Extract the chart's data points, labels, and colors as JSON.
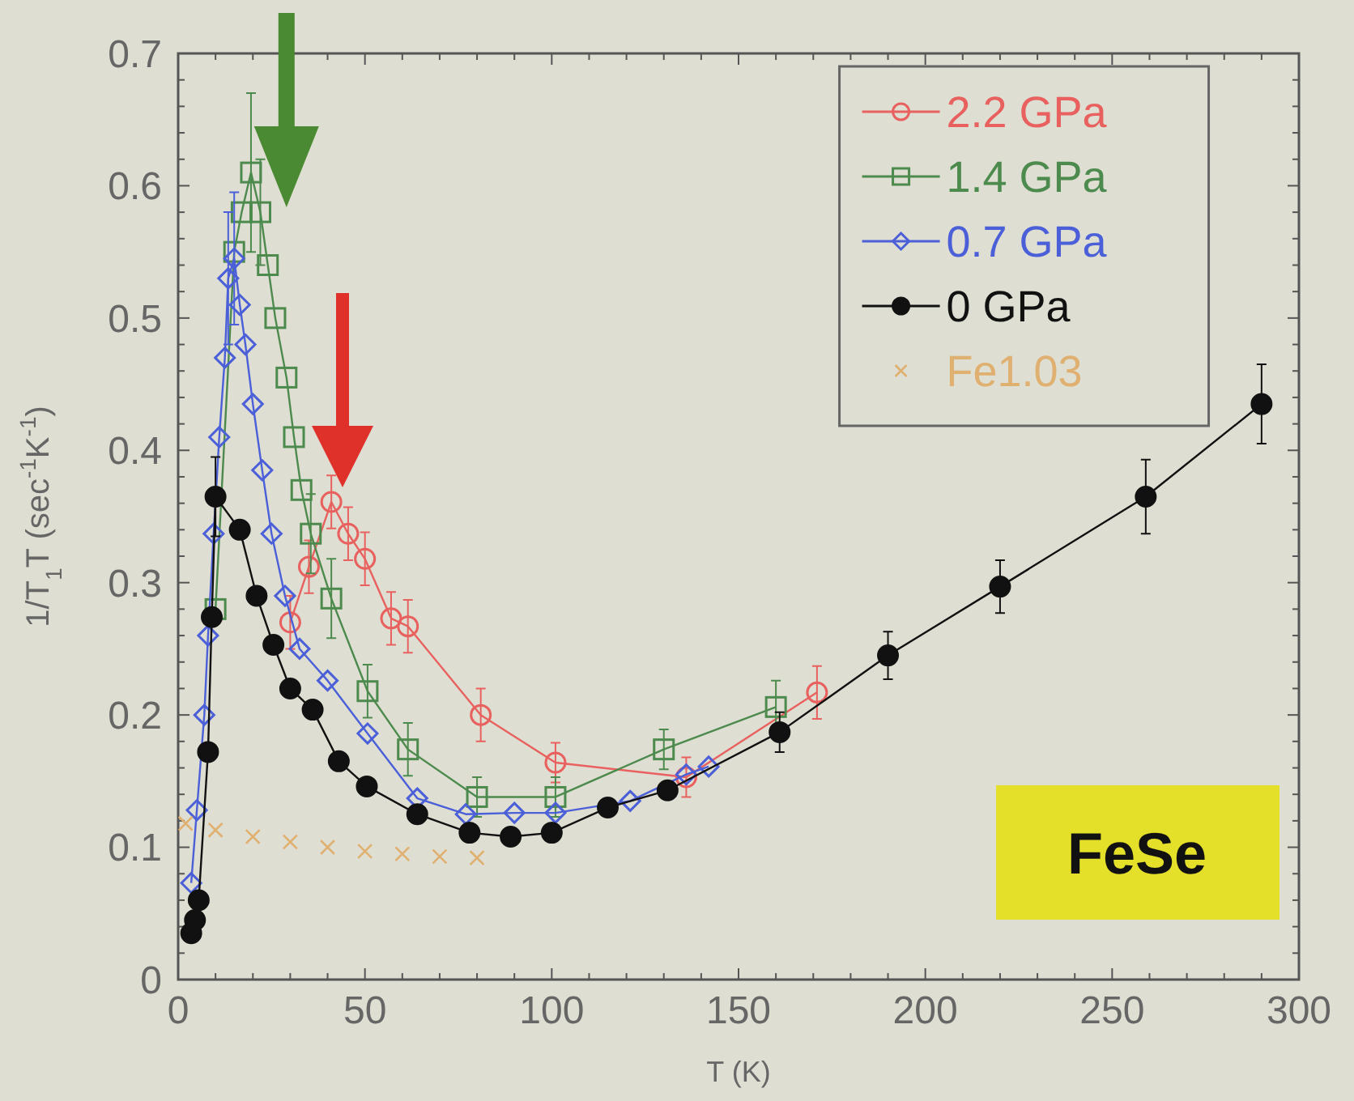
{
  "chart_data": {
    "type": "line",
    "xlabel": "T (K)",
    "ylabel": "1/T$_{1}$T (sec$^{-1}$K$^{-1}$)",
    "annotations": [
      "FeSe"
    ],
    "xlim": [
      0,
      300
    ],
    "xticks": [
      0,
      50,
      100,
      150,
      200,
      250,
      300
    ],
    "ylim": [
      0,
      0.7
    ],
    "yticks": [
      0,
      0.1,
      0.2,
      0.3,
      0.4,
      0.5,
      0.6,
      0.7
    ],
    "grid": false,
    "legend": "top right",
    "series": [
      {
        "name": "2.2 GPa",
        "color": "#e8615f",
        "marker": "circle",
        "x": [
          30,
          35,
          41,
          45.5,
          50,
          57,
          61.5,
          81,
          101,
          136,
          171
        ],
        "values": [
          0.27,
          0.312,
          0.361,
          0.337,
          0.318,
          0.273,
          0.267,
          0.2,
          0.164,
          0.153,
          0.217
        ],
        "errors": [
          0.02,
          0.02,
          0.02,
          0.02,
          0.02,
          0.02,
          0.02,
          0.02,
          0.015,
          0.015,
          0.02
        ]
      },
      {
        "name": "1.4 GPa",
        "color": "#4d8a4d",
        "marker": "square",
        "x": [
          10,
          15,
          17,
          19.5,
          22,
          24,
          26,
          29,
          31,
          33,
          35.5,
          41,
          50.7,
          61.5,
          80,
          101,
          130,
          160
        ],
        "values": [
          0.28,
          0.55,
          0.58,
          0.61,
          0.58,
          0.54,
          0.5,
          0.455,
          0.41,
          0.37,
          0.337,
          0.288,
          0.218,
          0.174,
          0.138,
          0.138,
          0.174,
          0.206
        ],
        "errors": [
          null,
          null,
          null,
          0.06,
          0.04,
          null,
          null,
          null,
          null,
          null,
          0.03,
          0.03,
          0.02,
          0.02,
          0.015,
          0.015,
          0.015,
          0.02
        ]
      },
      {
        "name": "0.7 GPa",
        "color": "#4b5fd8",
        "marker": "diamond",
        "x": [
          3.5,
          5,
          7,
          8,
          9.5,
          11,
          12.5,
          13.4,
          15,
          16.5,
          18,
          20,
          22.5,
          25,
          28.6,
          32.5,
          40,
          50.7,
          64,
          77,
          90,
          101,
          121,
          136,
          142
        ],
        "values": [
          0.073,
          0.128,
          0.2,
          0.26,
          0.337,
          0.41,
          0.47,
          0.53,
          0.545,
          0.51,
          0.48,
          0.435,
          0.385,
          0.337,
          0.29,
          0.25,
          0.226,
          0.186,
          0.137,
          0.125,
          0.126,
          0.126,
          0.135,
          0.155,
          0.161
        ],
        "errors": [
          null,
          null,
          null,
          null,
          null,
          null,
          null,
          0.05,
          0.05,
          null,
          null,
          null,
          null,
          null,
          null,
          null,
          null,
          null,
          null,
          null,
          null,
          null,
          null,
          null,
          null
        ]
      },
      {
        "name": "0 GPa",
        "color": "#111111",
        "marker": "circle",
        "x": [
          3.5,
          4.5,
          5.5,
          8,
          9,
          10,
          16.5,
          21,
          25.5,
          30,
          36,
          43,
          50.5,
          64,
          78,
          89,
          100,
          115,
          131,
          161,
          190,
          220,
          259,
          290
        ],
        "values": [
          0.035,
          0.045,
          0.06,
          0.172,
          0.274,
          0.365,
          0.34,
          0.29,
          0.253,
          0.22,
          0.204,
          0.165,
          0.146,
          0.125,
          0.111,
          0.108,
          0.111,
          0.13,
          0.143,
          0.187,
          0.245,
          0.297,
          0.365,
          0.435
        ],
        "errors": [
          null,
          null,
          null,
          null,
          null,
          0.03,
          null,
          null,
          null,
          null,
          null,
          null,
          null,
          null,
          null,
          null,
          null,
          null,
          null,
          0.015,
          0.018,
          0.02,
          0.028,
          0.03
        ]
      },
      {
        "name": "Fe1.03",
        "type": "scatter",
        "color": "#e0b070",
        "marker": "cross",
        "x": [
          2,
          10,
          20,
          30,
          40,
          50,
          60,
          70,
          80
        ],
        "values": [
          0.118,
          0.113,
          0.108,
          0.104,
          0.1,
          0.097,
          0.095,
          0.093,
          0.092
        ]
      }
    ]
  }
}
